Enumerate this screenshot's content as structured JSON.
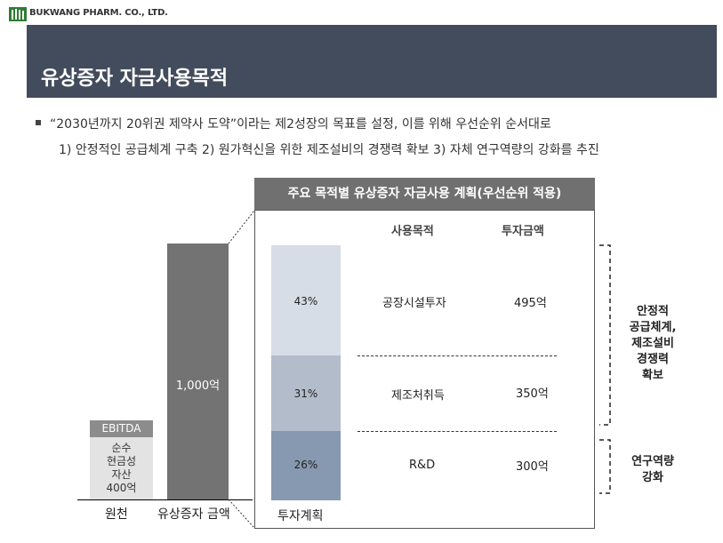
{
  "logo": {
    "text": "BUKWANG PHARM. CO., LTD."
  },
  "header": {
    "title": "유상증자 자금사용목적"
  },
  "description": {
    "line1": "“2030년까지 20위권 제약사 도약”이라는 제2성장의 목표를 설정, 이를 위해 우선순위 순서대로",
    "line2": "1) 안정적인 공급체계 구축 2) 원가혁신을 위한 제조설비의 경쟁력 확보 3) 자체 연구역량의 강화를 추진"
  },
  "left_chart": {
    "ebitda_label": "EBITDA",
    "cash_label": "순수\n현금성\n자산\n400억",
    "total_label": "1,000억",
    "x_labels": [
      "원천",
      "유상증자 금액"
    ]
  },
  "panel": {
    "title": "주요 목적별 유상증자 자금사용 계획(우선순위 적용)",
    "col_purpose": "사용목적",
    "col_amount": "투자금액",
    "x_label": "투자계획",
    "rows": [
      {
        "share": "43%",
        "purpose": "공장시설투자",
        "amount": "495억"
      },
      {
        "share": "31%",
        "purpose": "제조처취득",
        "amount": "350억"
      },
      {
        "share": "26%",
        "purpose": "R&D",
        "amount": "300억"
      }
    ]
  },
  "side_notes": [
    {
      "text": "안정적\n공급체계,\n제조설비\n경쟁력\n확보"
    },
    {
      "text": "연구역량\n강화"
    }
  ],
  "colors": {
    "title_band": "#434c5c",
    "panel_head": "#707070",
    "seg1": "#d7dde6",
    "seg2": "#b3bccb",
    "seg3": "#8799b0"
  }
}
